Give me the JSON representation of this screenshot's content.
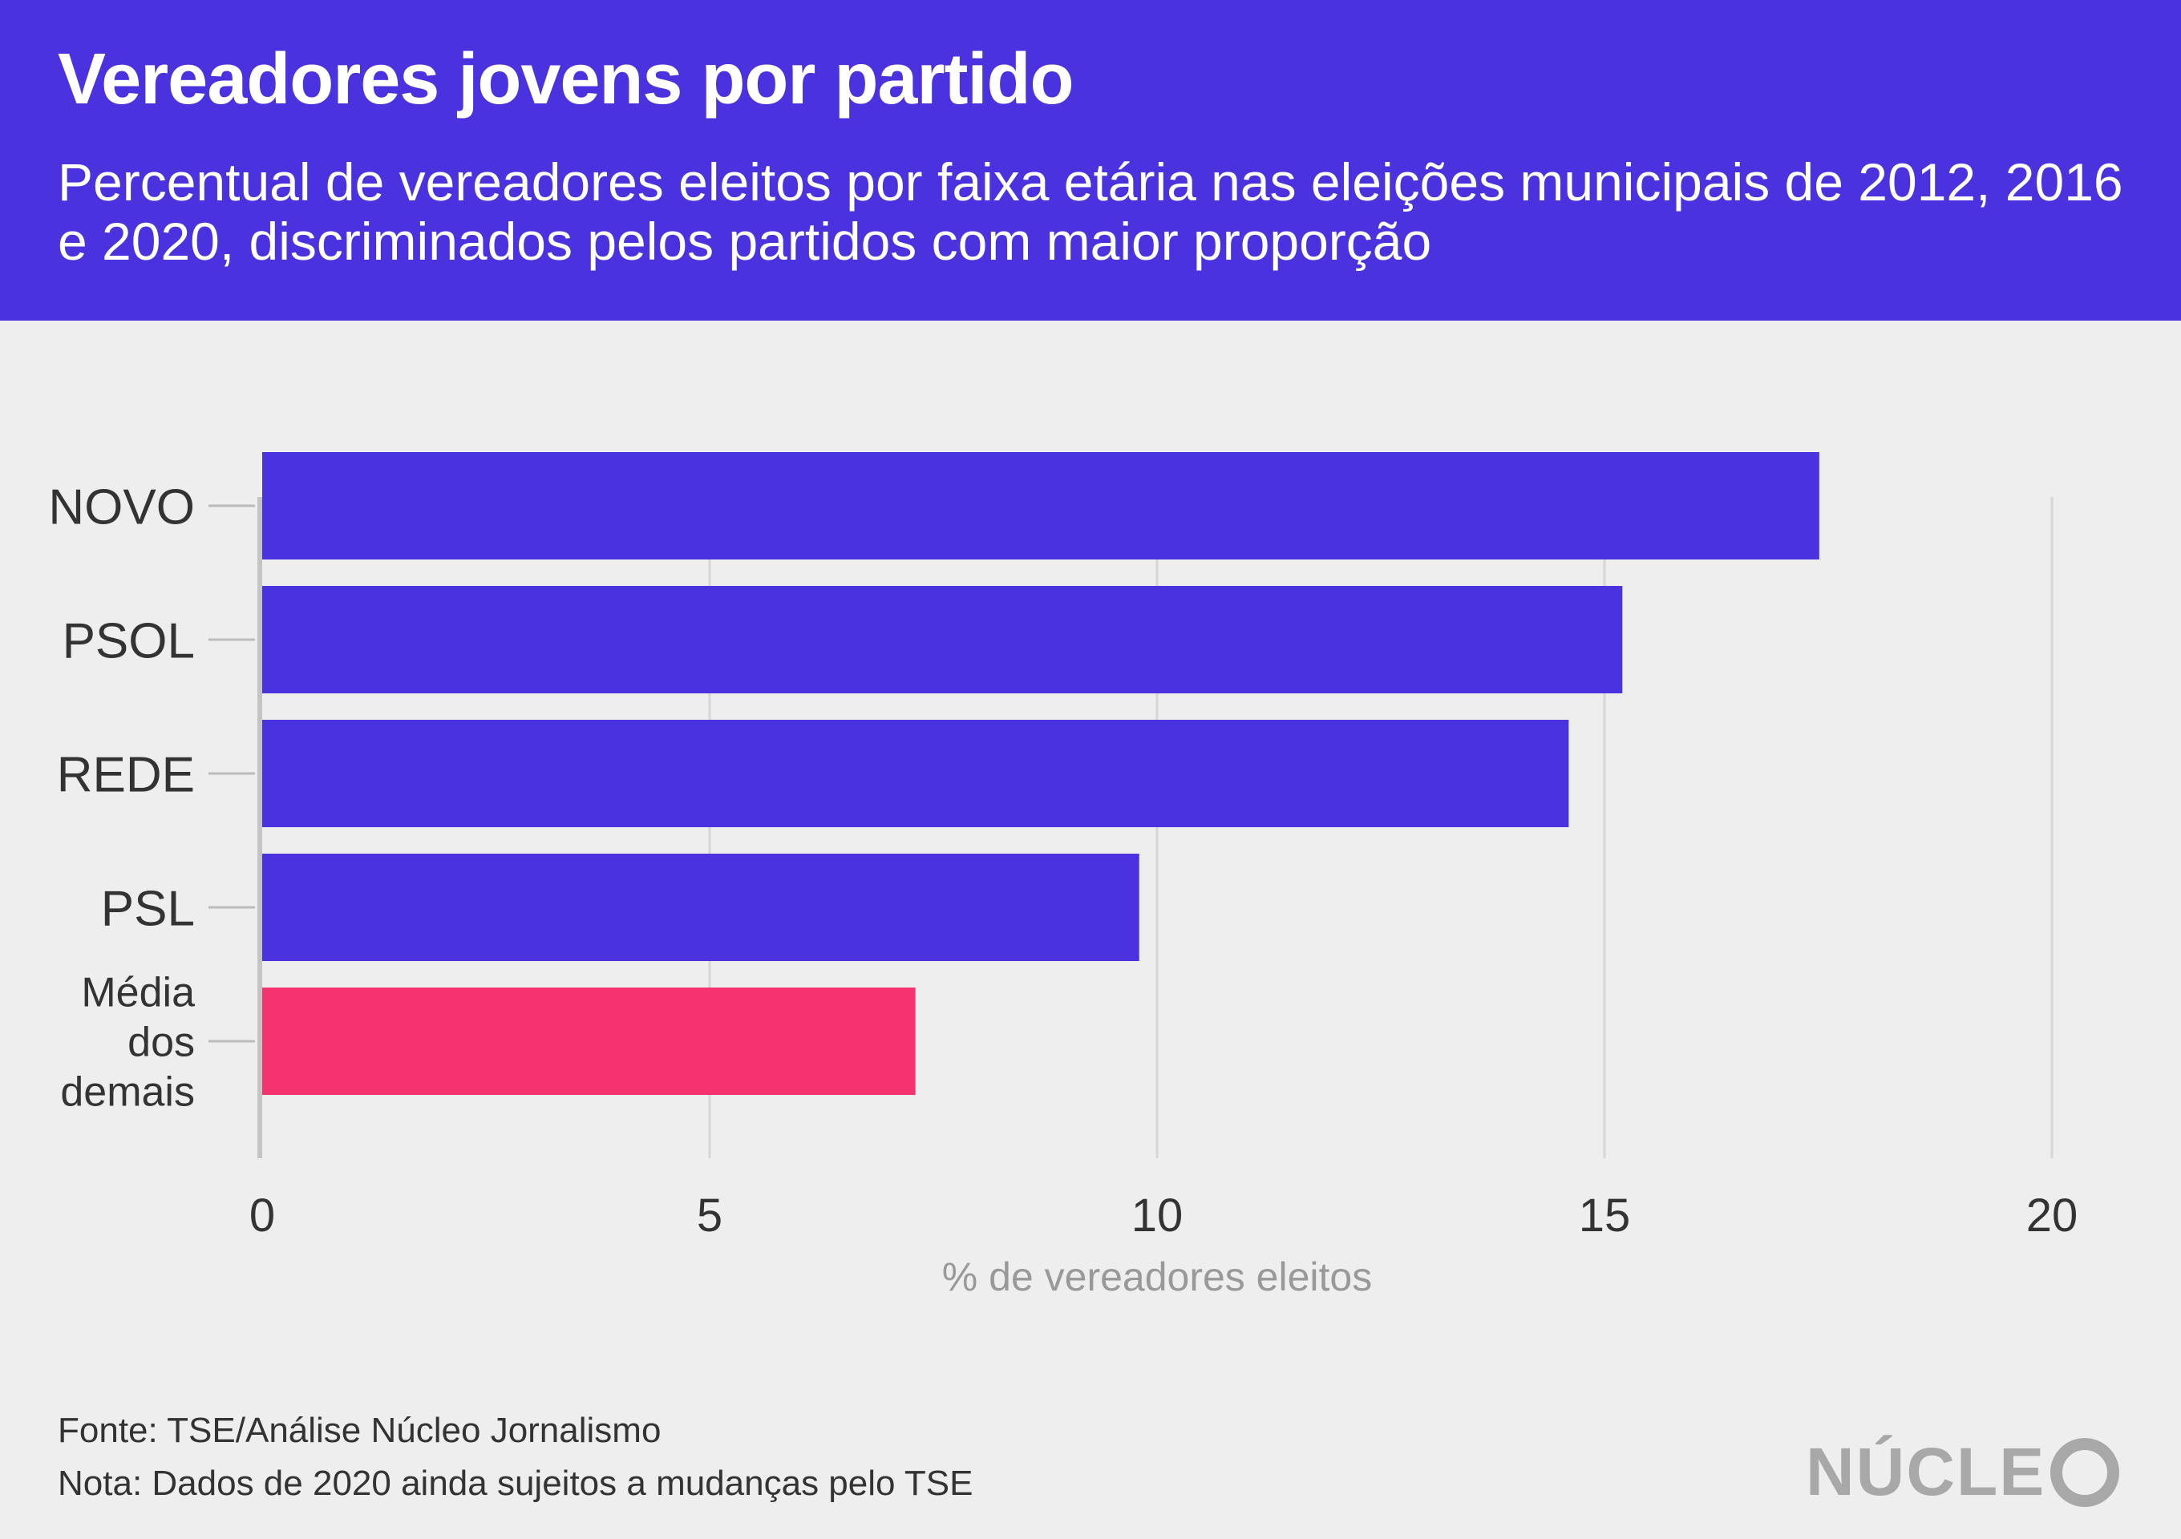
{
  "header": {
    "title": "Vereadores jovens por partido",
    "subtitle": "Percentual de vereadores eleitos por faixa etária nas eleições municipais de 2012, 2016 e 2020, discriminados pelos partidos com maior proporção"
  },
  "chart_data": {
    "type": "bar",
    "orientation": "horizontal",
    "categories": [
      "NOVO",
      "PSOL",
      "REDE",
      "PSL",
      "Média dos demais"
    ],
    "category_lines": [
      [
        "NOVO"
      ],
      [
        "PSOL"
      ],
      [
        "REDE"
      ],
      [
        "PSL"
      ],
      [
        "Média",
        "dos",
        "demais"
      ]
    ],
    "values": [
      17.4,
      15.2,
      14.6,
      9.8,
      7.3
    ],
    "bar_colors": [
      "#4a32df",
      "#4a32df",
      "#4a32df",
      "#4a32df",
      "#f43370"
    ],
    "xlabel": "% de vereadores eleitos",
    "xlim": [
      0,
      20
    ],
    "xticks": [
      0,
      5,
      10,
      15,
      20
    ],
    "grid": true
  },
  "footer": {
    "source": "Fonte: TSE/Análise Núcleo Jornalismo",
    "note": "Nota: Dados de 2020 ainda sujeitos a mudanças pelo TSE",
    "logo_text": "NÚCLE"
  }
}
